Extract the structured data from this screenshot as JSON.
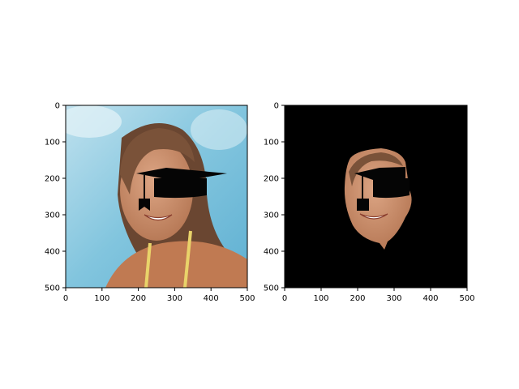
{
  "chart_data": [
    {
      "type": "image",
      "image_description": "original photo: woman smiling with a black graduation cap overlay on her face, sky-blue background",
      "xlim": [
        0,
        500
      ],
      "ylim": [
        500,
        0
      ],
      "xticks": [
        0,
        100,
        200,
        300,
        400,
        500
      ],
      "yticks": [
        0,
        100,
        200,
        300,
        400,
        500
      ],
      "xtick_labels": [
        "0",
        "100",
        "200",
        "300",
        "400",
        "500"
      ],
      "ytick_labels": [
        "0",
        "100",
        "200",
        "300",
        "400",
        "500"
      ],
      "title": "",
      "xlabel": "",
      "ylabel": ""
    },
    {
      "type": "image",
      "image_description": "segmented face only on black background, with graduation cap overlay",
      "xlim": [
        0,
        500
      ],
      "ylim": [
        500,
        0
      ],
      "xticks": [
        0,
        100,
        200,
        300,
        400,
        500
      ],
      "yticks": [
        0,
        100,
        200,
        300,
        400,
        500
      ],
      "xtick_labels": [
        "0",
        "100",
        "200",
        "300",
        "400",
        "500"
      ],
      "ytick_labels": [
        "0",
        "100",
        "200",
        "300",
        "400",
        "500"
      ],
      "title": "",
      "xlabel": "",
      "ylabel": ""
    }
  ],
  "colors": {
    "sky": "#7fc3dd",
    "sky_light": "#cfe8f2",
    "hair": "#6a4631",
    "skin": "#c98e6c",
    "cap": "#050505",
    "mask_bg": "#000000",
    "strap": "#e9d36a"
  }
}
